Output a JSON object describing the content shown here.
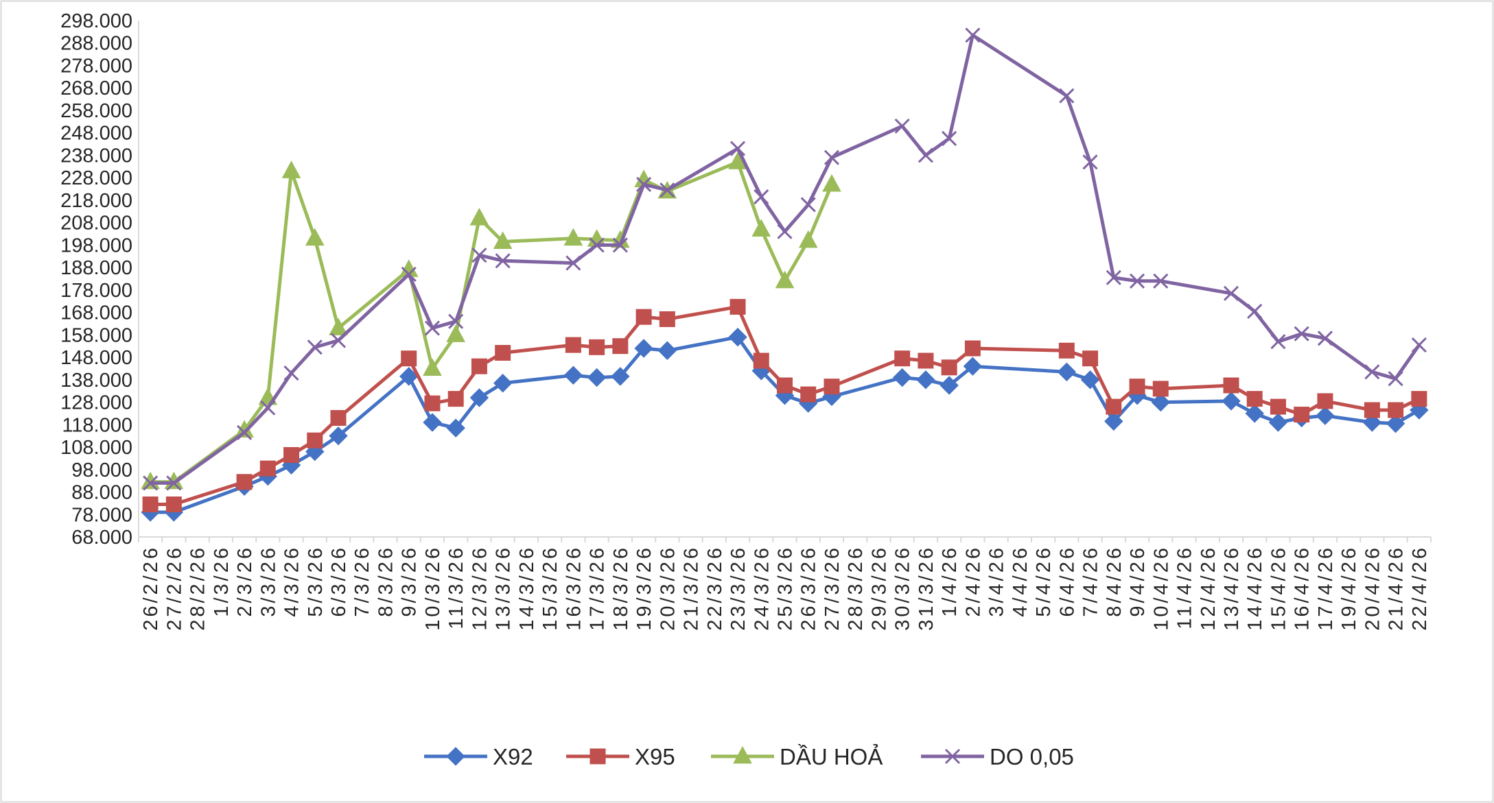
{
  "chart_data": {
    "type": "line",
    "title": "",
    "xlabel": "",
    "ylabel": "",
    "ylim": [
      68000,
      298000
    ],
    "y_tick_step": 10000,
    "y_tick_labels": [
      "68.000",
      "78.000",
      "88.000",
      "98.000",
      "108.000",
      "118.000",
      "128.000",
      "138.000",
      "148.000",
      "158.000",
      "168.000",
      "178.000",
      "188.000",
      "198.000",
      "208.000",
      "218.000",
      "228.000",
      "238.000",
      "248.000",
      "258.000",
      "268.000",
      "278.000",
      "288.000",
      "298.000"
    ],
    "grid": false,
    "legend_position": "bottom",
    "categories": [
      "26/2/26",
      "27/2/26",
      "28/2/26",
      "1/3/26",
      "2/3/26",
      "3/3/26",
      "4/3/26",
      "5/3/26",
      "6/3/26",
      "7/3/26",
      "8/3/26",
      "9/3/26",
      "10/3/26",
      "11/3/26",
      "12/3/26",
      "13/3/26",
      "14/3/26",
      "15/3/26",
      "16/3/26",
      "17/3/26",
      "18/3/26",
      "19/3/26",
      "20/3/26",
      "21/3/26",
      "22/3/26",
      "23/3/26",
      "24/3/26",
      "25/3/26",
      "26/3/26",
      "27/3/26",
      "28/3/26",
      "29/3/26",
      "30/3/26",
      "31/3/26",
      "1/4/26",
      "2/4/26",
      "3/4/26",
      "4/4/26",
      "5/4/26",
      "6/4/26",
      "7/4/26",
      "8/4/26",
      "9/4/26",
      "10/4/26",
      "11/4/26",
      "12/4/26",
      "13/4/26",
      "14/4/26",
      "15/4/26",
      "16/4/26",
      "17/4/26",
      "19/4/26",
      "20/4/26",
      "21/4/26",
      "22/4/26"
    ],
    "series": [
      {
        "name": "X92",
        "color": "#4472C4",
        "marker": "diamond",
        "values": [
          79000,
          79000,
          null,
          null,
          90500,
          95000,
          100000,
          106000,
          113000,
          null,
          null,
          139500,
          119000,
          116500,
          130000,
          136500,
          null,
          null,
          140000,
          139000,
          139500,
          152000,
          151000,
          null,
          null,
          157000,
          142000,
          131000,
          127500,
          130500,
          null,
          null,
          139000,
          138000,
          135500,
          144000,
          null,
          null,
          null,
          141500,
          138000,
          119500,
          131000,
          128000,
          null,
          null,
          128500,
          123000,
          119000,
          121000,
          122000,
          null,
          119000,
          118500,
          124500
        ]
      },
      {
        "name": "X95",
        "color": "#C0504D",
        "marker": "square",
        "values": [
          82500,
          82500,
          null,
          null,
          92500,
          98500,
          104500,
          111000,
          121000,
          null,
          null,
          147500,
          127500,
          129500,
          144000,
          150000,
          null,
          null,
          153500,
          152500,
          153000,
          166000,
          165000,
          null,
          null,
          170500,
          146500,
          135500,
          131500,
          135000,
          null,
          null,
          147500,
          146500,
          143500,
          152000,
          null,
          null,
          null,
          151000,
          147500,
          126000,
          135000,
          134000,
          null,
          null,
          135500,
          129500,
          126000,
          122500,
          128500,
          null,
          124500,
          124500,
          129500
        ]
      },
      {
        "name": "DẦU HOẢ",
        "color": "#9BBB59",
        "marker": "triangle",
        "values": [
          92500,
          92500,
          null,
          null,
          115500,
          130000,
          231000,
          201000,
          161000,
          null,
          null,
          187000,
          143000,
          158000,
          210000,
          199500,
          null,
          null,
          201000,
          200500,
          200000,
          227000,
          222000,
          null,
          null,
          235000,
          205000,
          182000,
          200000,
          225000,
          null,
          null,
          null,
          null,
          null,
          null,
          null,
          null,
          null,
          null,
          null,
          null,
          null,
          null,
          null,
          null,
          null,
          null,
          null,
          null,
          null,
          null,
          null,
          null,
          null
        ]
      },
      {
        "name": "DO 0,05",
        "color": "#8064A2",
        "marker": "x",
        "values": [
          92000,
          92000,
          null,
          null,
          114500,
          125500,
          141000,
          152500,
          155500,
          null,
          null,
          185000,
          161000,
          164000,
          193500,
          191000,
          null,
          null,
          190000,
          198000,
          198000,
          225000,
          222500,
          null,
          null,
          241000,
          219500,
          204000,
          216000,
          237000,
          null,
          null,
          251000,
          238000,
          245500,
          291500,
          null,
          null,
          null,
          264500,
          235000,
          183500,
          182000,
          182000,
          null,
          null,
          176500,
          168500,
          155000,
          158500,
          156500,
          null,
          141500,
          138500,
          153500
        ]
      }
    ]
  }
}
